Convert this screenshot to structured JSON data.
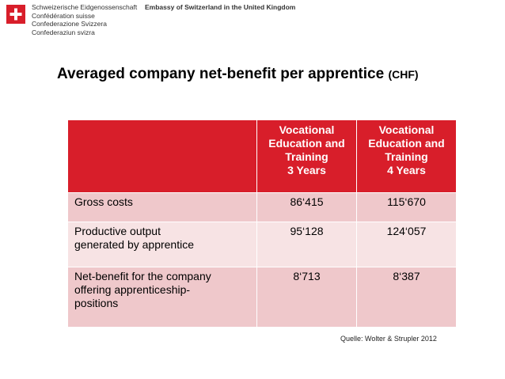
{
  "header": {
    "org_lines": [
      "Schweizerische Eidgenossenschaft",
      "Confédération suisse",
      "Confederazione Svizzera",
      "Confederaziun svizra"
    ],
    "embassy": "Embassy of Switzerland in the United Kingdom"
  },
  "title": {
    "main": "Averaged company net-benefit per apprentice",
    "unit": "(CHF)"
  },
  "table": {
    "columns": [
      [
        "Vocational",
        "Education and",
        "Training",
        "3 Years"
      ],
      [
        "Vocational",
        "Education and",
        "Training",
        "4 Years"
      ]
    ],
    "rows": [
      {
        "label": [
          "Gross costs"
        ],
        "cells": [
          "86‘415",
          "115‘670"
        ]
      },
      {
        "label": [
          "Productive output",
          "generated by apprentice"
        ],
        "cells": [
          "95‘128",
          "124‘057"
        ]
      },
      {
        "label": [
          "Net-benefit for the company",
          "offering apprenticeship-",
          "positions"
        ],
        "cells": [
          "8‘713",
          "8‘387"
        ]
      }
    ]
  },
  "source": "Quelle: Wolter & Strupler 2012"
}
